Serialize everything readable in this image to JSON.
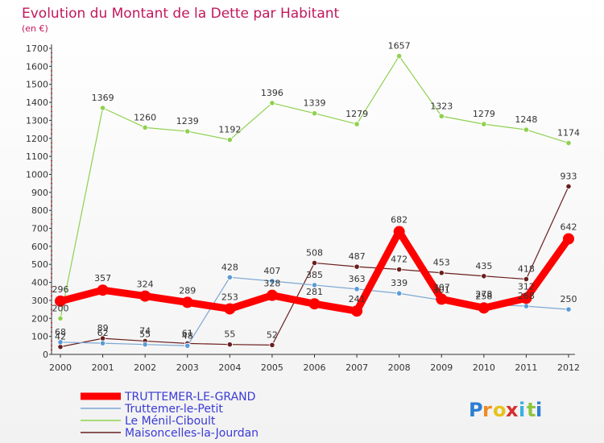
{
  "chart_data": {
    "type": "line",
    "title": "Evolution du Montant de la Dette par Habitant",
    "subtitle": "(en €)",
    "x": [
      "2000",
      "2001",
      "2002",
      "2003",
      "2004",
      "2005",
      "2006",
      "2007",
      "2008",
      "2009",
      "2010",
      "2011",
      "2012"
    ],
    "ylim": [
      0,
      1700
    ],
    "yticks": [
      0,
      100,
      200,
      300,
      400,
      500,
      600,
      700,
      800,
      900,
      1000,
      1100,
      1200,
      1300,
      1400,
      1500,
      1600,
      1700
    ],
    "grid": false,
    "legend_position": "bottom-left",
    "series": [
      {
        "name": "TRUTTEMER-LE-GRAND",
        "color": "#ff0000",
        "values": [
          296,
          357,
          324,
          289,
          253,
          328,
          281,
          241,
          682,
          307,
          258,
          312,
          642
        ]
      },
      {
        "name": "Truttemer-le-Petit",
        "color": "#5b9bd5",
        "values": [
          68,
          62,
          55,
          48,
          428,
          407,
          385,
          363,
          339,
          301,
          278,
          268,
          250
        ]
      },
      {
        "name": "Le Ménil-Ciboult",
        "color": "#8fd14f",
        "values": [
          200,
          1369,
          1260,
          1239,
          1192,
          1396,
          1339,
          1279,
          1657,
          1323,
          1279,
          1248,
          1174
        ]
      },
      {
        "name": "Maisoncelles-la-Jourdan",
        "color": "#6b1e1e",
        "values": [
          42,
          89,
          74,
          61,
          55,
          52,
          508,
          487,
          472,
          453,
          435,
          418,
          933
        ]
      }
    ]
  },
  "branding": {
    "letters": [
      "P",
      "r",
      "o",
      "x",
      "i",
      "t",
      "i"
    ],
    "colors": [
      "#2b7fd3",
      "#f08c1f",
      "#e8c21b",
      "#d62f2f",
      "#3bb0e0",
      "#8cc63e",
      "#2b7fd3"
    ]
  }
}
